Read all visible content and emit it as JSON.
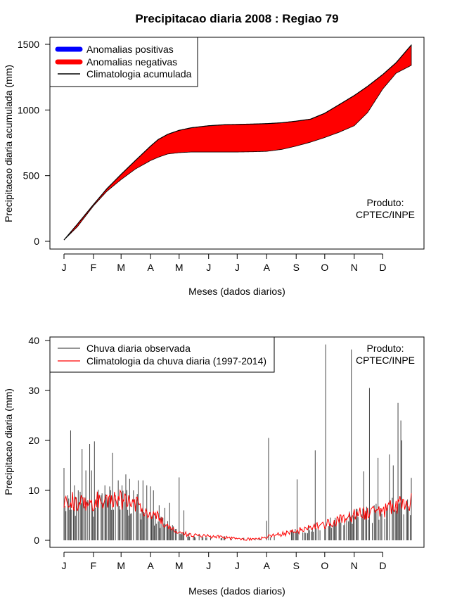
{
  "figure": {
    "title": "Precipitacao diaria 2008 : Regiao 79"
  },
  "chart_data": [
    {
      "type": "area",
      "title": "Precipitacao diaria 2008 : Regiao 79",
      "xlabel": "Meses (dados diarios)",
      "ylabel": "Precipitacao diaria acumulada (mm)",
      "xlim": [
        1,
        366
      ],
      "ylim": [
        0,
        1500
      ],
      "yticks": [
        0,
        500,
        1000,
        1500
      ],
      "month_ticks": [
        "J",
        "F",
        "M",
        "A",
        "M",
        "J",
        "J",
        "A",
        "S",
        "O",
        "N",
        "D"
      ],
      "month_start_days": [
        1,
        32,
        61,
        92,
        122,
        153,
        183,
        214,
        245,
        275,
        306,
        336
      ],
      "legend": {
        "position": "top-left",
        "entries": [
          {
            "label": "Anomalias positivas",
            "color": "#0000ff",
            "style": "thick"
          },
          {
            "label": "Anomalias negativas",
            "color": "#ff0000",
            "style": "thick"
          },
          {
            "label": "Climatologia acumulada",
            "color": "#000000",
            "style": "line"
          }
        ]
      },
      "annotation": [
        "Produto:",
        "CPTEC/INPE"
      ],
      "climatology_cumulative": {
        "days": [
          1,
          15,
          32,
          46,
          61,
          76,
          92,
          100,
          110,
          122,
          135,
          153,
          170,
          183,
          200,
          214,
          230,
          245,
          260,
          275,
          290,
          306,
          320,
          336,
          350,
          366
        ],
        "values": [
          10,
          130,
          280,
          400,
          510,
          615,
          725,
          775,
          815,
          845,
          865,
          880,
          888,
          890,
          893,
          896,
          903,
          915,
          930,
          975,
          1040,
          1110,
          1180,
          1270,
          1360,
          1495
        ]
      },
      "observed_cumulative": {
        "days": [
          1,
          15,
          32,
          46,
          61,
          76,
          92,
          100,
          110,
          122,
          135,
          153,
          170,
          183,
          200,
          214,
          230,
          245,
          260,
          275,
          290,
          306,
          320,
          336,
          350,
          366
        ],
        "values": [
          10,
          110,
          270,
          380,
          470,
          550,
          615,
          640,
          665,
          675,
          680,
          680,
          680,
          680,
          682,
          685,
          700,
          725,
          755,
          790,
          830,
          880,
          980,
          1160,
          1280,
          1340
        ]
      }
    },
    {
      "type": "bar",
      "title": "",
      "xlabel": "Meses (dados diarios)",
      "ylabel": "Precipitacao diaria (mm)",
      "xlim": [
        1,
        366
      ],
      "ylim": [
        0,
        40
      ],
      "yticks": [
        0,
        10,
        20,
        30,
        40
      ],
      "month_ticks": [
        "J",
        "F",
        "M",
        "A",
        "M",
        "J",
        "J",
        "A",
        "S",
        "O",
        "N",
        "D"
      ],
      "month_start_days": [
        1,
        32,
        61,
        92,
        122,
        153,
        183,
        214,
        245,
        275,
        306,
        336
      ],
      "legend": {
        "position": "top-left",
        "entries": [
          {
            "label": "Chuva diaria observada",
            "color": "#555555",
            "style": "line"
          },
          {
            "label": "Climatologia da chuva diaria (1997-2014)",
            "color": "#ff0000",
            "style": "line"
          }
        ]
      },
      "annotation": [
        "Produto:",
        "CPTEC/INPE"
      ],
      "observed_daily_peaks": {
        "days": [
          1,
          5,
          8,
          12,
          16,
          20,
          24,
          28,
          30,
          33,
          36,
          40,
          44,
          48,
          52,
          55,
          58,
          62,
          66,
          70,
          74,
          79,
          84,
          88,
          92,
          95,
          101,
          107,
          112,
          122,
          127,
          150,
          170,
          190,
          214,
          216,
          246,
          265,
          276,
          303,
          316,
          322,
          331,
          343,
          347,
          352,
          355,
          356,
          366
        ],
        "values": [
          14.5,
          9,
          22,
          11,
          10,
          18.3,
          14,
          19.3,
          14,
          19.8,
          8,
          9,
          11,
          8.5,
          17.5,
          9,
          12,
          11,
          13.2,
          12.3,
          10,
          12,
          12,
          11,
          10.8,
          10,
          7,
          6.5,
          7.5,
          12.6,
          6,
          0.6,
          0.8,
          0.5,
          3.9,
          20.5,
          12.2,
          18,
          39.2,
          38.2,
          13.8,
          30.5,
          16.5,
          17.2,
          15,
          27.5,
          24,
          20,
          12.5
        ]
      },
      "climatology_daily": {
        "days": [
          1,
          15,
          32,
          46,
          61,
          76,
          92,
          107,
          122,
          137,
          153,
          168,
          183,
          198,
          214,
          229,
          245,
          260,
          275,
          290,
          306,
          321,
          336,
          351,
          366
        ],
        "values": [
          8.5,
          7.5,
          7.8,
          8.5,
          8,
          7.5,
          5.5,
          3.5,
          1.5,
          1,
          0.8,
          0.6,
          0.3,
          0.2,
          0.7,
          1.2,
          1.8,
          2.5,
          3.2,
          4,
          5,
          5.5,
          6,
          7,
          8
        ]
      }
    }
  ]
}
